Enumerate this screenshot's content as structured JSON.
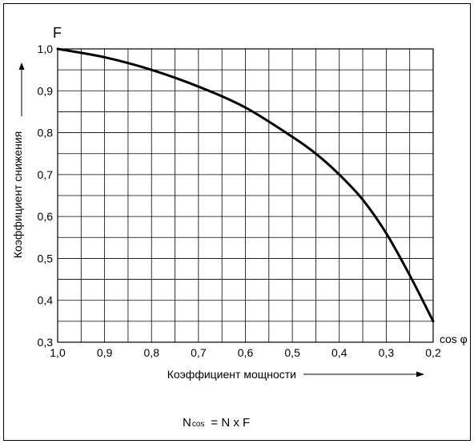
{
  "chart_data": {
    "type": "line",
    "title": "",
    "y_symbol": "F",
    "xlabel": "Коэффициент мощности",
    "ylabel": "Коэффициент снижения",
    "x_symbol": "cos φ",
    "xlim": [
      1.0,
      0.2
    ],
    "ylim": [
      0.3,
      1.0
    ],
    "x_reversed": true,
    "grid": true,
    "x_ticks": [
      "1,0",
      "0,9",
      "0,8",
      "0,7",
      "0,6",
      "0,5",
      "0,4",
      "0,3",
      "0,2"
    ],
    "y_ticks": [
      "0,3",
      "0,4",
      "0,5",
      "0,6",
      "0,7",
      "0,8",
      "0,9",
      "1,0"
    ],
    "series": [
      {
        "x": [
          1.0,
          0.9,
          0.8,
          0.7,
          0.6,
          0.5,
          0.45,
          0.4,
          0.35,
          0.3,
          0.25,
          0.2
        ],
        "y": [
          1.0,
          0.98,
          0.95,
          0.91,
          0.86,
          0.79,
          0.75,
          0.7,
          0.64,
          0.56,
          0.46,
          0.35
        ]
      }
    ]
  },
  "formula": {
    "lhs_main": "N",
    "lhs_sub": "cos",
    "rhs": "= N x F"
  }
}
